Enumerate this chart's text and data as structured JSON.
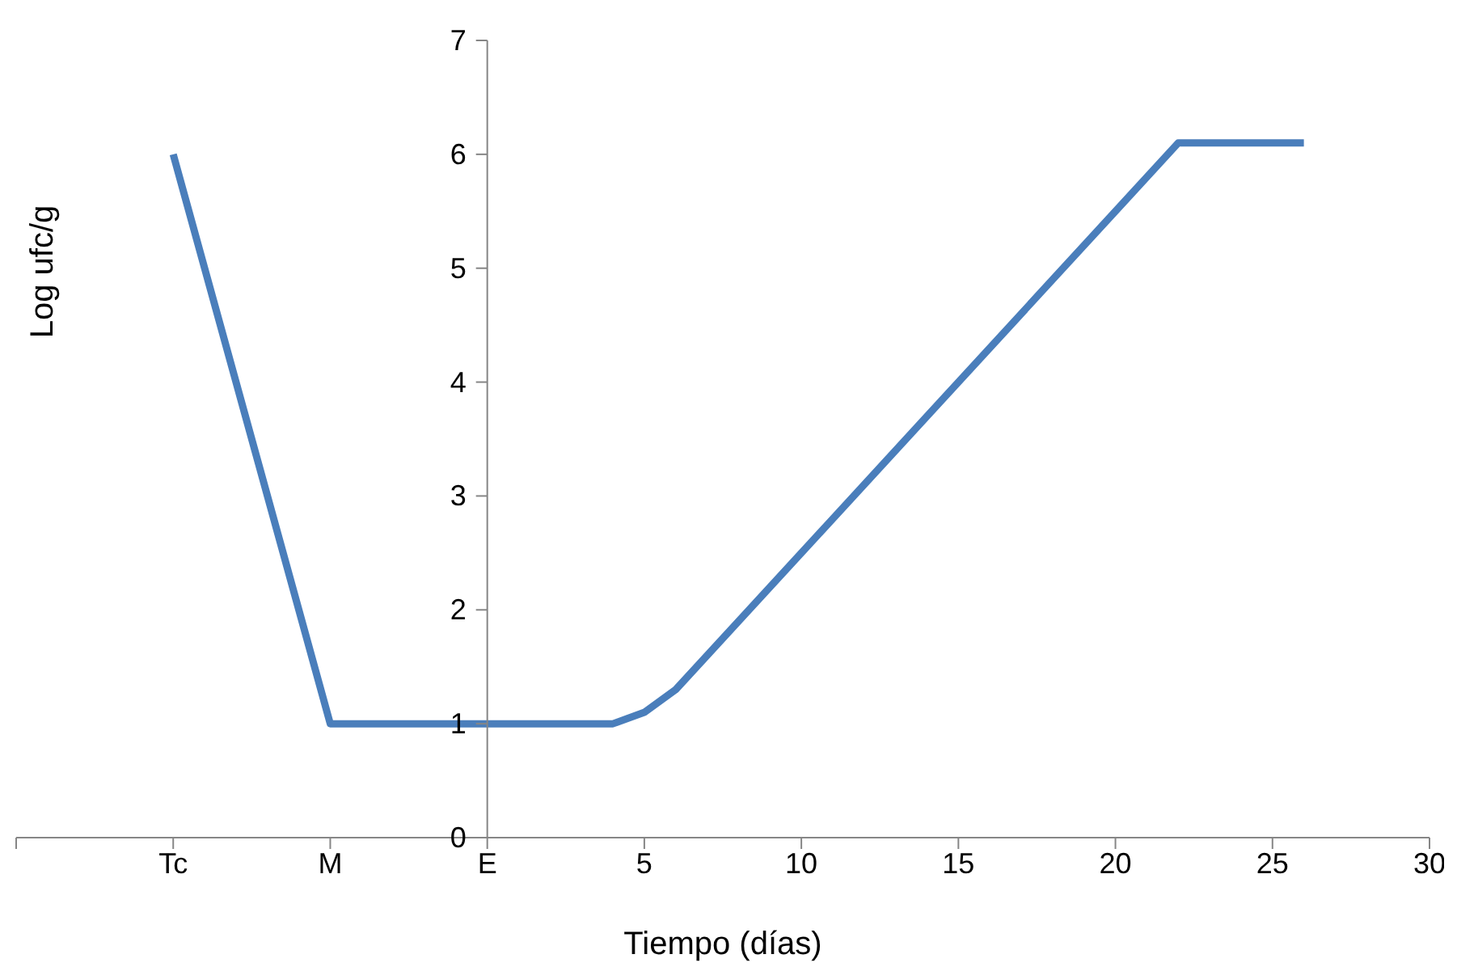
{
  "chart_data": {
    "type": "line",
    "xlabel": "Tiempo (días)",
    "ylabel": "Log ufc/g",
    "x": [
      -10,
      -5,
      0,
      4,
      5,
      6,
      22,
      26
    ],
    "series": [
      {
        "color": "#4a7ebb",
        "values": [
          6,
          1,
          1,
          1,
          1.1,
          1.3,
          6.1,
          6.1
        ]
      }
    ],
    "xlim": [
      -15,
      30
    ],
    "xticks": [
      {
        "value": -15,
        "label": null
      },
      {
        "value": -10,
        "label": "Tc"
      },
      {
        "value": -5,
        "label": "M"
      },
      {
        "value": 0,
        "label": "E"
      },
      5,
      10,
      15,
      20,
      25,
      30
    ],
    "ylim": [
      0,
      7
    ],
    "yticks": [
      0,
      1,
      2,
      3,
      4,
      5,
      6,
      7
    ],
    "grid": false,
    "marker": "none",
    "line_style": "solid",
    "legend": false
  }
}
